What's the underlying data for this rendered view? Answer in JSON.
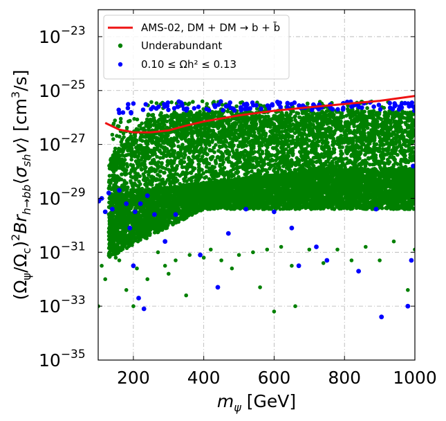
{
  "chart_data": {
    "type": "scatter",
    "xlabel": "m_ψ [GeV]",
    "ylabel": "(Ω_ψ/Ω_c)² Br_{h→bb} ⟨σ_sh v⟩ [cm³/s]",
    "xlim": [
      100,
      1000
    ],
    "ylim_log10": [
      -35,
      -22
    ],
    "y_scale": "log",
    "grid": true,
    "legend_position": "top-left",
    "x_ticks": [
      200,
      400,
      600,
      800,
      1000
    ],
    "y_tick_exponents": [
      -35,
      -33,
      -31,
      -29,
      -27,
      -25,
      -23
    ],
    "colors": {
      "ams": "#ee1111",
      "under": "#008000",
      "relic": "#0000ff"
    },
    "legend": [
      {
        "label": "AMS-02, DM + DM → b + b̄",
        "kind": "line",
        "color_key": "ams"
      },
      {
        "label": "Underabundant",
        "kind": "marker",
        "color_key": "under"
      },
      {
        "label": "0.10 ≤ Ωh² ≤ 0.13",
        "kind": "marker",
        "color_key": "relic"
      }
    ],
    "series": [
      {
        "name": "AMS-02, DM + DM → b + b̄",
        "kind": "line",
        "x": [
          120,
          160,
          200,
          250,
          300,
          350,
          400,
          500,
          600,
          700,
          800,
          900,
          1000
        ],
        "log10_y": [
          -26.2,
          -26.45,
          -26.55,
          -26.55,
          -26.48,
          -26.3,
          -26.15,
          -25.92,
          -25.75,
          -25.62,
          -25.5,
          -25.38,
          -25.2
        ]
      },
      {
        "name": "Underabundant",
        "kind": "scatter",
        "points": [
          [
            100,
            -33.0
          ],
          [
            110,
            -31.5
          ],
          [
            120,
            -32.0
          ],
          [
            140,
            -30.9
          ],
          [
            150,
            -31.2
          ],
          [
            160,
            -31.3
          ],
          [
            180,
            -32.4
          ],
          [
            200,
            -33.0
          ],
          [
            210,
            -31.6
          ],
          [
            240,
            -32.0
          ],
          [
            270,
            -31.0
          ],
          [
            290,
            -31.5
          ],
          [
            300,
            -31.8
          ],
          [
            320,
            -31.3
          ],
          [
            350,
            -32.6
          ],
          [
            360,
            -31.1
          ],
          [
            400,
            -31.2
          ],
          [
            420,
            -30.9
          ],
          [
            450,
            -31.3
          ],
          [
            480,
            -31.6
          ],
          [
            500,
            -31.1
          ],
          [
            540,
            -31.0
          ],
          [
            560,
            -32.3
          ],
          [
            580,
            -30.9
          ],
          [
            600,
            -33.2
          ],
          [
            620,
            -30.8
          ],
          [
            650,
            -31.5
          ],
          [
            660,
            -33.0
          ],
          [
            700,
            -30.9
          ],
          [
            740,
            -31.4
          ],
          [
            780,
            -30.9
          ],
          [
            820,
            -31.3
          ],
          [
            860,
            -30.8
          ],
          [
            900,
            -31.3
          ],
          [
            940,
            -30.6
          ],
          [
            980,
            -32.4
          ],
          [
            1000,
            -30.9
          ]
        ]
      },
      {
        "name": "0.10 ≤ Ωh² ≤ 0.13",
        "kind": "scatter",
        "points": [
          [
            102,
            -29.1
          ],
          [
            110,
            -29.0
          ],
          [
            120,
            -29.5
          ],
          [
            130,
            -28.8
          ],
          [
            140,
            -29.4
          ],
          [
            160,
            -28.7
          ],
          [
            180,
            -29.2
          ],
          [
            190,
            -30.1
          ],
          [
            200,
            -31.5
          ],
          [
            205,
            -29.5
          ],
          [
            215,
            -32.7
          ],
          [
            220,
            -29.2
          ],
          [
            230,
            -33.1
          ],
          [
            240,
            -28.9
          ],
          [
            260,
            -29.6
          ],
          [
            290,
            -30.6
          ],
          [
            320,
            -29.6
          ],
          [
            390,
            -31.1
          ],
          [
            440,
            -32.3
          ],
          [
            470,
            -30.3
          ],
          [
            520,
            -29.4
          ],
          [
            600,
            -29.5
          ],
          [
            650,
            -30.1
          ],
          [
            670,
            -31.5
          ],
          [
            720,
            -30.8
          ],
          [
            750,
            -31.3
          ],
          [
            840,
            -31.7
          ],
          [
            890,
            -29.4
          ],
          [
            905,
            -33.4
          ],
          [
            980,
            -33.0
          ],
          [
            990,
            -31.3
          ],
          [
            995,
            -27.8
          ]
        ]
      }
    ]
  }
}
